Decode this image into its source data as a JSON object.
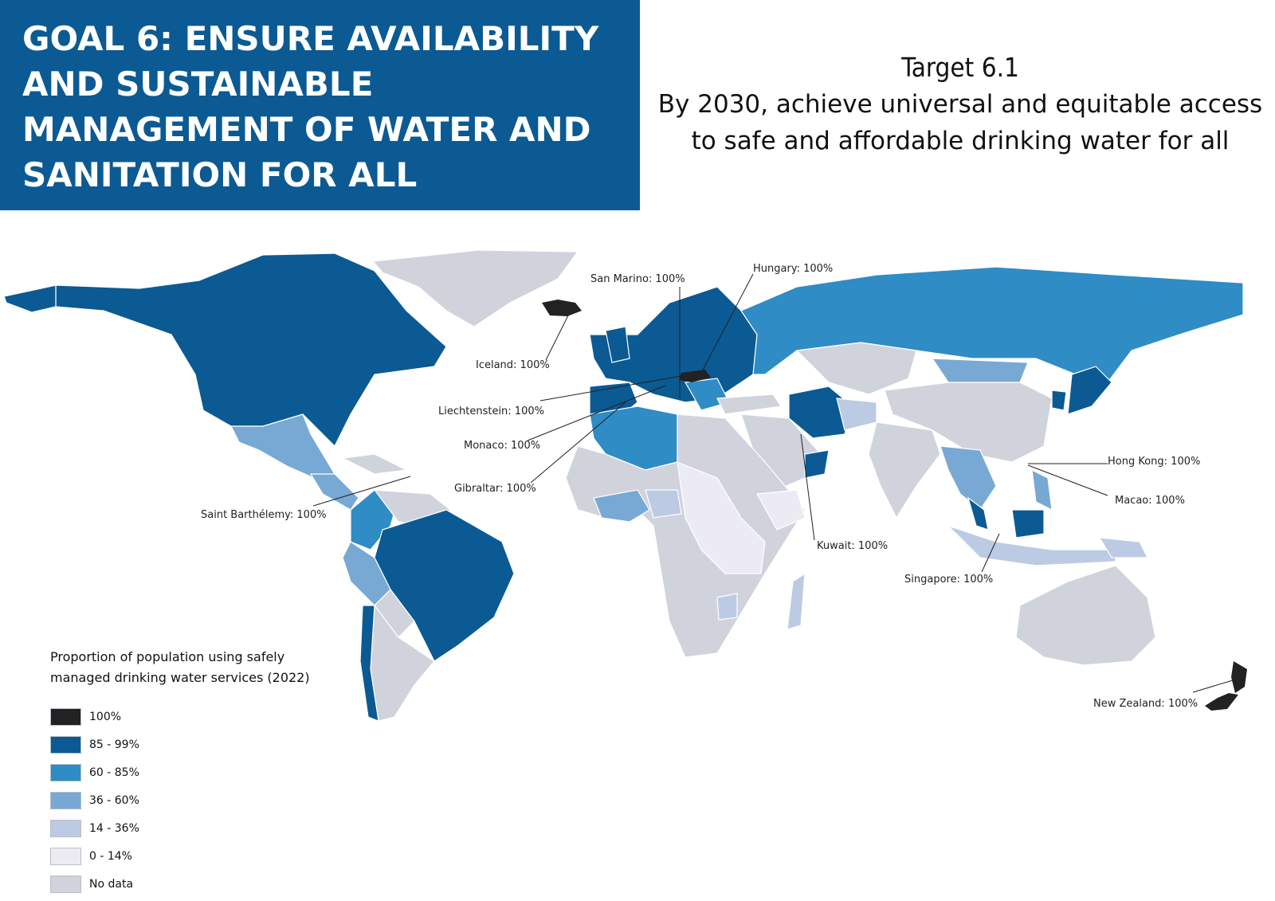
{
  "header": {
    "goal_title": "GOAL 6: ENSURE AVAILABILITY AND SUSTAINABLE MANAGEMENT OF WATER AND SANITATION FOR ALL",
    "target_number": "Target 6.1",
    "target_text": "By 2030, achieve universal and equitable access to safe and affordable drinking water for all"
  },
  "legend": {
    "title": "Proportion of population using safely managed drinking water services (2022)",
    "items": [
      {
        "label": "100%",
        "color": "#222222"
      },
      {
        "label": "85 - 99%",
        "color": "#0b5a93"
      },
      {
        "label": "60 - 85%",
        "color": "#2f8cc4"
      },
      {
        "label": "36 - 60%",
        "color": "#78a9d4"
      },
      {
        "label": "14 - 36%",
        "color": "#bccbe3"
      },
      {
        "label": "0 - 14%",
        "color": "#ecebf4"
      },
      {
        "label": "No data",
        "color": "#d0d3dc"
      }
    ]
  },
  "callouts": {
    "san_marino": "San Marino: 100%",
    "hungary": "Hungary: 100%",
    "iceland": "Iceland: 100%",
    "liechtenstein": "Liechtenstein: 100%",
    "monaco": "Monaco: 100%",
    "gibraltar": "Gibraltar: 100%",
    "saint_barthelemy": "Saint Barthélemy: 100%",
    "hong_kong": "Hong Kong: 100%",
    "macao": "Macao: 100%",
    "kuwait": "Kuwait: 100%",
    "singapore": "Singapore: 100%",
    "new_zealand": "New Zealand: 100%"
  },
  "colors": {
    "full": "#222222",
    "high": "#0b5a93",
    "mid_high": "#2f8cc4",
    "mid": "#78a9d4",
    "low": "#bccbe3",
    "very_low": "#ecebf4",
    "no_data": "#d0d3dc"
  }
}
